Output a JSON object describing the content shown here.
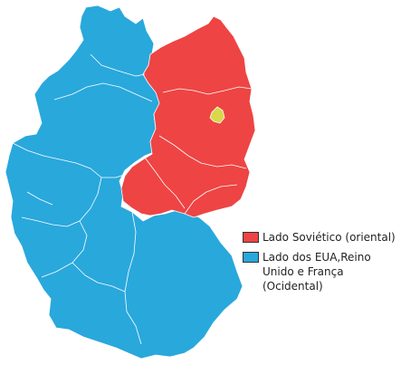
{
  "colors": {
    "west": "#29a8dc",
    "east": "#ee4444",
    "berlin": "#d8d848",
    "borders": "#ffffff",
    "background": "#ffffff"
  },
  "legend": {
    "items": [
      {
        "label": "Lado Soviético (oriental)",
        "color": "#ee4444"
      },
      {
        "label": "Lado dos EUA,Reino Unido e França (Ocidental)",
        "color": "#29a8dc"
      }
    ]
  }
}
